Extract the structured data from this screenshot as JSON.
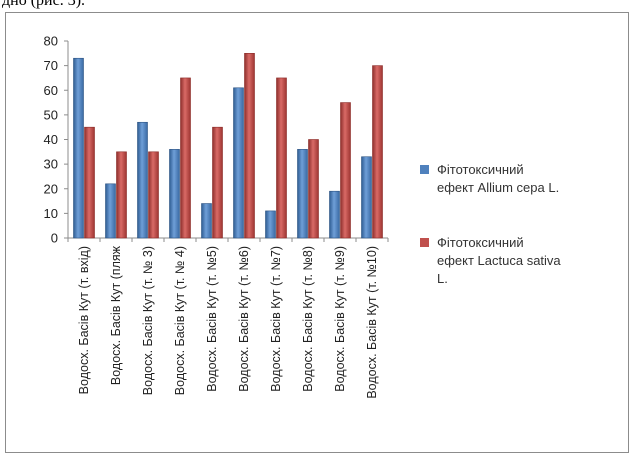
{
  "caption_fragment": "дно (рис. 3).",
  "chart_data": {
    "type": "bar",
    "categories": [
      "Водосх. Басів Кут (т. вхід)",
      "Водосх. Басів Кут (пляж",
      "Водосх. Басів Кут (т. № 3)",
      "Водосх. Басів Кут (т. № 4)",
      "Водосх. Басів Кут (т. №5)",
      "Водосх. Басів Кут (т. №6)",
      "Водосх. Басів Кут (т. №7)",
      "Водосх. Басів Кут (т. №8)",
      "Водосх. Басів Кут (т. №9)",
      "Водосх. Басів Кут (т. №10)"
    ],
    "series": [
      {
        "name": "Фітотоксичний ефект Allium cepa L.",
        "color": "#4f81bd",
        "values": [
          73,
          22,
          47,
          36,
          14,
          61,
          11,
          36,
          19,
          33
        ]
      },
      {
        "name": "Фітотоксичний ефект Lactuca sativa L.",
        "color": "#c0504d",
        "values": [
          45,
          35,
          35,
          65,
          45,
          75,
          65,
          40,
          55,
          70
        ]
      }
    ],
    "ylim": [
      0,
      80
    ],
    "yticks": [
      0,
      10,
      20,
      30,
      40,
      50,
      60,
      70,
      80
    ],
    "grid": false,
    "legend_position": "right"
  }
}
